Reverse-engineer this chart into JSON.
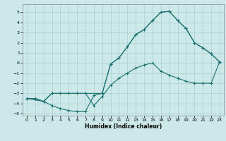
{
  "xlabel": "Humidex (Indice chaleur)",
  "bg_color": "#cce8e8",
  "line_color": "#1a7070",
  "grid_color": "#aacfcf",
  "xlim": [
    -0.5,
    23.5
  ],
  "ylim": [
    -5.2,
    5.8
  ],
  "xticks": [
    0,
    1,
    2,
    3,
    4,
    5,
    6,
    7,
    8,
    9,
    10,
    11,
    12,
    13,
    14,
    15,
    16,
    17,
    18,
    19,
    20,
    21,
    22,
    23
  ],
  "yticks": [
    -5,
    -4,
    -3,
    -2,
    -1,
    0,
    1,
    2,
    3,
    4,
    5
  ],
  "line1_x": [
    0,
    1,
    2,
    3,
    4,
    5,
    6,
    7,
    8,
    9,
    10,
    11,
    12,
    13,
    14,
    15,
    16,
    17,
    18,
    19,
    20,
    21,
    22,
    23
  ],
  "line1_y": [
    -3.5,
    -3.5,
    -3.8,
    -4.2,
    -4.5,
    -4.7,
    -4.8,
    -4.8,
    -3.2,
    -3.0,
    -0.1,
    0.5,
    1.6,
    2.8,
    3.3,
    4.2,
    5.0,
    5.1,
    4.2,
    3.4,
    2.0,
    1.5,
    0.9,
    0.1
  ],
  "line2_x": [
    0,
    1,
    2,
    3,
    4,
    5,
    6,
    7,
    8,
    9,
    10,
    11,
    12,
    13,
    14,
    15,
    16,
    17,
    18,
    19,
    20,
    21,
    22,
    23
  ],
  "line2_y": [
    -3.5,
    -3.5,
    -3.8,
    -3.0,
    -3.0,
    -3.0,
    -3.0,
    -3.0,
    -4.2,
    -3.3,
    -2.2,
    -1.5,
    -1.0,
    -0.5,
    -0.2,
    0.0,
    -0.8,
    -1.2,
    -1.5,
    -1.8,
    -2.0,
    -2.0,
    -2.0,
    0.1
  ],
  "line3_x": [
    0,
    2,
    3,
    9,
    10,
    11,
    12,
    13,
    14,
    15,
    16,
    17,
    18,
    19,
    20,
    21,
    22,
    23
  ],
  "line3_y": [
    -3.5,
    -3.8,
    -3.0,
    -3.0,
    -0.1,
    0.5,
    1.6,
    2.8,
    3.3,
    4.2,
    5.0,
    5.1,
    4.2,
    3.4,
    2.0,
    1.5,
    0.9,
    0.1
  ]
}
